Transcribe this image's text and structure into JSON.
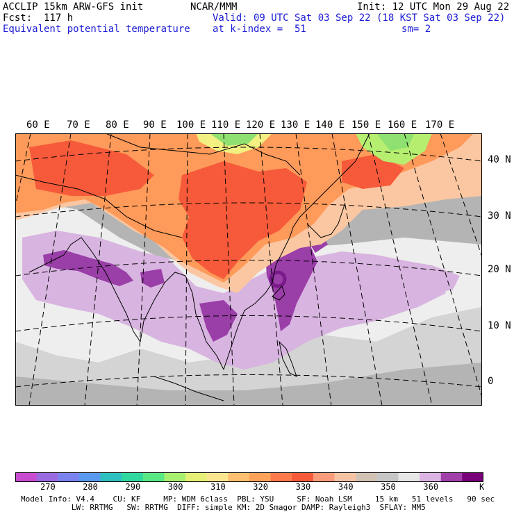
{
  "header": {
    "model_title": "ACCLIP 15km ARW-GFS init",
    "forecast": "Fcst:  117 h",
    "field_name": "Equivalent potential temperature",
    "center": "NCAR/MMM",
    "valid": "Valid: 09 UTC Sat 03 Sep 22 (18 KST Sat 03 Sep 22)",
    "level": "at k-index =  51",
    "init": "Init: 12 UTC Mon 29 Aug 22",
    "smoothing": "sm= 2"
  },
  "map": {
    "lon_labels": [
      "60 E",
      "70 E",
      "80 E",
      "90 E",
      "100 E",
      "110 E",
      "120 E",
      "130 E",
      "140 E",
      "150 E",
      "160 E",
      "170 E"
    ],
    "lat_labels": [
      "40 N",
      "30 N",
      "20 N",
      "10 N",
      "0"
    ],
    "colors": {
      "ocean_gray": "#b4b4b4",
      "light_gray": "#d4d4d4",
      "white_band": "#eeeeee",
      "lilac": "#d8b4e0",
      "purple": "#9a3ea8",
      "dark_purple": "#7a1a8a",
      "orange": "#fe9a5a",
      "red_orange": "#f65a3a",
      "peach": "#fbc7a2",
      "yellow": "#f2f080",
      "green": "#8ee070",
      "light_green": "#b6ee70"
    }
  },
  "colorbar": {
    "colors": [
      "#c84cd0",
      "#9a6ae0",
      "#7a82ee",
      "#5a9aee",
      "#2ec0c0",
      "#30d8a0",
      "#5ae884",
      "#a8f070",
      "#e6f076",
      "#fae690",
      "#fec070",
      "#fea25a",
      "#fe7a4a",
      "#f65a3a",
      "#fa9c7c",
      "#f6c4a4",
      "#d2c2b4",
      "#c6c6c6",
      "#e6e6e6",
      "#dcb4e4",
      "#a040a8",
      "#780078"
    ],
    "labels": [
      "270",
      "280",
      "290",
      "300",
      "310",
      "320",
      "330",
      "340",
      "350",
      "360"
    ],
    "unit": "K"
  },
  "footer": {
    "line1": "Model Info: V4.4    CU: KF     MP: WDM 6class  PBL: YSU     SF: Noah LSM     15 km   51 levels   90 sec",
    "line2": "           LW: RRTMG   SW: RRTMG  DIFF: simple KM: 2D Smagor DAMP: Rayleigh3  SFLAY: MM5"
  }
}
